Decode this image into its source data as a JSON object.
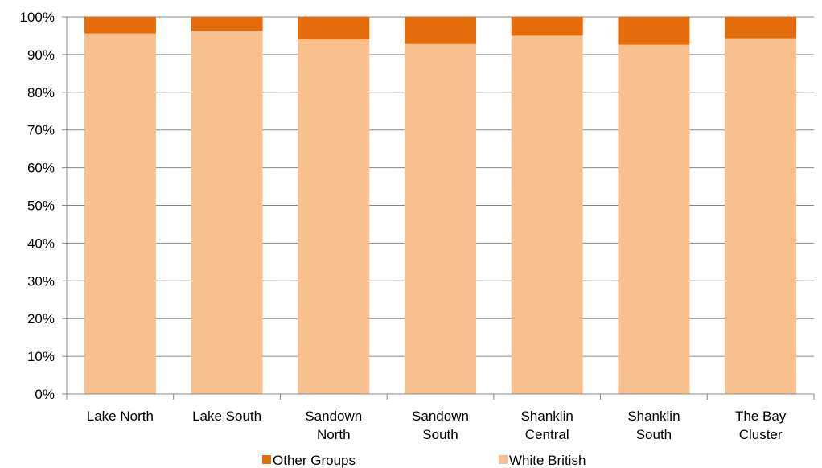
{
  "chart_data": {
    "type": "bar",
    "stacked": true,
    "normalized_percent": true,
    "categories": [
      [
        "Lake North"
      ],
      [
        "Lake South"
      ],
      [
        "Sandown",
        "North"
      ],
      [
        "Sandown",
        "South"
      ],
      [
        "Shanklin",
        "Central"
      ],
      [
        "Shanklin",
        "South"
      ],
      [
        "The Bay",
        "Cluster"
      ]
    ],
    "series": [
      {
        "name": "White British",
        "values": [
          95.6,
          96.3,
          94.0,
          92.8,
          95.0,
          92.6,
          94.3
        ],
        "color": "#f8c08f"
      },
      {
        "name": "Other Groups",
        "values": [
          4.4,
          3.7,
          6.0,
          7.2,
          5.0,
          7.4,
          5.7
        ],
        "color": "#e46c0a"
      }
    ],
    "legend_order": [
      "Other Groups",
      "White British"
    ],
    "ylim": [
      0,
      100
    ],
    "yticks": [
      {
        "value": 0,
        "label": "0%"
      },
      {
        "value": 10,
        "label": "10%"
      },
      {
        "value": 20,
        "label": "20%"
      },
      {
        "value": 30,
        "label": "30%"
      },
      {
        "value": 40,
        "label": "40%"
      },
      {
        "value": 50,
        "label": "50%"
      },
      {
        "value": 60,
        "label": "60%"
      },
      {
        "value": 70,
        "label": "70%"
      },
      {
        "value": 80,
        "label": "80%"
      },
      {
        "value": 90,
        "label": "90%"
      },
      {
        "value": 100,
        "label": "100%"
      }
    ],
    "grid": true,
    "legend_position": "bottom",
    "gridline_color": "#868686"
  }
}
